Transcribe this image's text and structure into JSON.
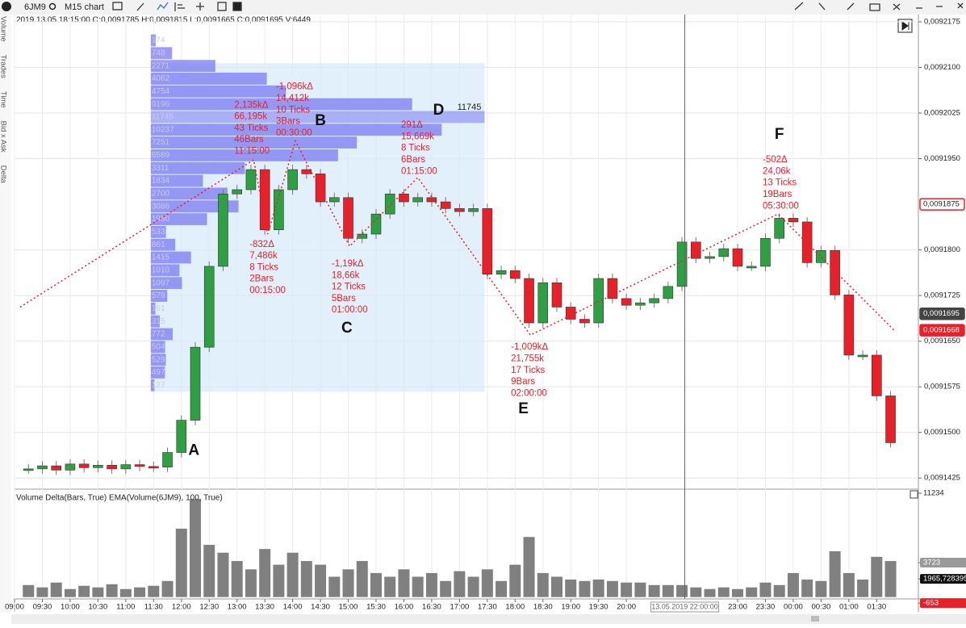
{
  "toolbar": {
    "symbol": "6JM9",
    "chart_type": "M15 chart"
  },
  "info_line": "2019.13.05 18:15:00 O:0,0091785 H:0,0091815 L:0,0091665 C:0,0091695 V:6449",
  "side_tabs": [
    "Volume",
    "Trades",
    "Time",
    "Bid x Ask",
    "Delta"
  ],
  "chart_data": [
    {
      "type": "candlestick",
      "values": [
        0.009144,
        0.0091445,
        0.0091438,
        0.0091448,
        0.0091442,
        0.0091446,
        0.009144,
        0.0091447,
        0.0091444,
        0.0091443,
        0.0091467,
        0.009152,
        0.009164,
        0.0091773,
        0.0091892,
        0.0091899,
        0.0091932,
        0.0091833,
        0.0091899,
        0.0091932,
        0.0091925,
        0.0091879,
        0.0091886,
        0.0091819,
        0.0091826,
        0.0091859,
        0.0091892,
        0.0091879,
        0.0091886,
        0.0091879,
        0.0091868,
        0.0091863,
        0.0091868,
        0.009176,
        0.0091766,
        0.0091753,
        0.009168,
        0.0091746,
        0.0091706,
        0.0091686,
        0.009168,
        0.0091753,
        0.009172,
        0.0091709,
        0.0091713,
        0.009172,
        0.009174,
        0.0091813,
        0.0091786,
        0.0091789,
        0.0091802,
        0.0091773,
        0.0091773,
        0.0091819,
        0.0091852,
        0.0091846,
        0.0091779,
        0.0091799,
        0.0091726,
        0.0091627,
        0.0091627,
        0.009156,
        0.0091483
      ],
      "up_color": "#2ea043",
      "down_color": "#e8202a",
      "xlim": [
        -1,
        64
      ],
      "ylim": [
        0.0091408,
        0.0092175
      ],
      "yticks": [
        {
          "value": 0.0092175,
          "label": "0,0092175"
        },
        {
          "value": 0.00921,
          "label": "0,0092100"
        },
        {
          "value": 0.0092025,
          "label": "0,0092025"
        },
        {
          "value": 0.009195,
          "label": "0,0091950"
        },
        {
          "value": 0.00918,
          "label": "0,0091800"
        },
        {
          "value": 0.0091725,
          "label": "0,0091725"
        },
        {
          "value": 0.009165,
          "label": "0,0091650"
        },
        {
          "value": 0.0091575,
          "label": "0,0091575"
        },
        {
          "value": 0.00915,
          "label": "0,0091500"
        },
        {
          "value": 0.0091425,
          "label": "0,0091425"
        }
      ],
      "price_labels": [
        {
          "value": 0.0091875,
          "label": "0,0091875",
          "style": "outline"
        },
        {
          "value": 0.0091695,
          "label": "0,0091695",
          "style": "dark"
        },
        {
          "value": 0.0091668,
          "label": "0,0091668",
          "style": "red"
        }
      ],
      "range_box": {
        "x": [
          8.8,
          32.8
        ],
        "y": [
          0.0091567,
          0.0092107
        ]
      },
      "profile": {
        "values": [
          174,
          748,
          2271,
          4082,
          4754,
          9196,
          11745,
          10237,
          7251,
          6589,
          3311,
          1834,
          2700,
          3086,
          1980,
          533,
          861,
          1415,
          1010,
          1097,
          579,
          161,
          315,
          772,
          504,
          529,
          497,
          127
        ],
        "ylim": [
          0.0091567,
          0.0092155
        ],
        "color": "#7b7bf0",
        "poc_label": "11745"
      },
      "zigzag": {
        "x": [
          -0.6,
          16.2,
          17.2,
          19.2,
          23.1,
          28,
          36.1,
          53.9,
          62.3
        ],
        "y": [
          0.0091706,
          0.0091948,
          0.0091826,
          0.0091979,
          0.0091806,
          0.0091919,
          0.009166,
          0.0091859,
          0.0091667
        ],
        "color": "#e8202a"
      },
      "annotations": [
        {
          "x": 14.8,
          "y": 0.0092038,
          "lines": [
            "2,135kΔ",
            "66,195k",
            "43 Ticks",
            "46Bars",
            "11:15:00"
          ]
        },
        {
          "x": 17.8,
          "y": 0.0092068,
          "lines": [
            "-1,096kΔ",
            "14,412k",
            "10 Ticks",
            "3Bars",
            "00:30:00"
          ]
        },
        {
          "x": 26.8,
          "y": 0.0092005,
          "lines": [
            "291Δ",
            "15,669k",
            "8 Ticks",
            "6Bars",
            "01:15:00"
          ]
        },
        {
          "x": 15.9,
          "y": 0.0091809,
          "lines": [
            "-832Δ",
            "7,486k",
            "8 Ticks",
            "2Bars",
            "00:15:00"
          ]
        },
        {
          "x": 21.8,
          "y": 0.0091777,
          "lines": [
            "-1,19kΔ",
            "18,66k",
            "12 Ticks",
            "5Bars",
            "01:00:00"
          ]
        },
        {
          "x": 34.7,
          "y": 0.009164,
          "lines": [
            "-1,009kΔ",
            "21,755k",
            "17 Ticks",
            "9Bars",
            "02:00:00"
          ]
        },
        {
          "x": 52.8,
          "y": 0.0091948,
          "lines": [
            "-502Δ",
            "24,06k",
            "13 Ticks",
            "19Bars",
            "05:30:00"
          ]
        }
      ],
      "letters": [
        {
          "text": "A",
          "x": 11.9,
          "y": 0.009147
        },
        {
          "text": "B",
          "x": 21,
          "y": 0.0092012
        },
        {
          "text": "C",
          "x": 22.9,
          "y": 0.0091671
        },
        {
          "text": "D",
          "x": 29.5,
          "y": 0.0092029
        },
        {
          "text": "E",
          "x": 35.6,
          "y": 0.0091538
        },
        {
          "text": "F",
          "x": 54,
          "y": 0.0091989
        }
      ]
    },
    {
      "type": "bar",
      "title": "Volume Delta(Bars, True) EMA(Volume(6JM9), 100, True)",
      "values": [
        1300,
        1050,
        1570,
        870,
        1220,
        1050,
        1390,
        870,
        1050,
        1220,
        1740,
        7400,
        10600,
        5650,
        4800,
        3900,
        3000,
        5200,
        3500,
        4800,
        3900,
        3500,
        2200,
        3000,
        3900,
        2600,
        2200,
        3000,
        2200,
        2600,
        1740,
        2800,
        2200,
        3000,
        1740,
        3500,
        6500,
        2600,
        2200,
        1900,
        1740,
        1900,
        1740,
        1570,
        1570,
        1300,
        1300,
        1300,
        1050,
        870,
        1050,
        870,
        1050,
        1570,
        1300,
        2600,
        1900,
        1740,
        4960,
        2600,
        1900,
        4350,
        3900
      ],
      "color": "#808080",
      "xlim": [
        -1,
        64
      ],
      "ylim": [
        -900,
        11234
      ],
      "yticks": [
        11234,
        3723,
        {
          "value": 1965.728395,
          "label": "1965,728395"
        },
        -653
      ],
      "ytick_styles": [
        "plain",
        "gray",
        "dark",
        "red"
      ],
      "xticks": [
        {
          "value": -1,
          "label": "09:00"
        },
        {
          "value": 1,
          "label": "09:30"
        },
        {
          "value": 3,
          "label": "10:00"
        },
        {
          "value": 5,
          "label": "10:30"
        },
        {
          "value": 7,
          "label": "11:00"
        },
        {
          "value": 9,
          "label": "11:30"
        },
        {
          "value": 11,
          "label": "12:00"
        },
        {
          "value": 13,
          "label": "12:30"
        },
        {
          "value": 15,
          "label": "13:00"
        },
        {
          "value": 17,
          "label": "13:30"
        },
        {
          "value": 19,
          "label": "14:00"
        },
        {
          "value": 21,
          "label": "14:30"
        },
        {
          "value": 23,
          "label": "15:00"
        },
        {
          "value": 25,
          "label": "15:30"
        },
        {
          "value": 27,
          "label": "16:00"
        },
        {
          "value": 29,
          "label": "16:30"
        },
        {
          "value": 31,
          "label": "17:00"
        },
        {
          "value": 33,
          "label": "17:30"
        },
        {
          "value": 35,
          "label": "18:00"
        },
        {
          "value": 37,
          "label": "18:30"
        },
        {
          "value": 39,
          "label": "19:00"
        },
        {
          "value": 41,
          "label": "19:30"
        },
        {
          "value": 43,
          "label": "20:00"
        },
        {
          "value": 51,
          "label": "23:00"
        },
        {
          "value": 53,
          "label": "23:30"
        },
        {
          "value": 55,
          "label": "00:00"
        },
        {
          "value": 57,
          "label": "00:30"
        },
        {
          "value": 59,
          "label": "01:00"
        },
        {
          "value": 61,
          "label": "01:30"
        }
      ],
      "cursor": {
        "x": 47.2,
        "label": "13.05.2019 22:00:00"
      }
    }
  ]
}
